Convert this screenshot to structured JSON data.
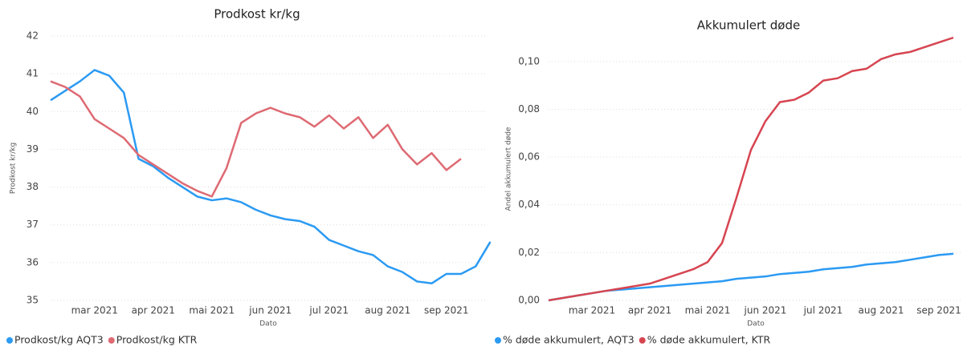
{
  "chart_data": [
    {
      "type": "line",
      "title": "Prodkost kr/kg",
      "x_label": "Dato",
      "y_label": "Prodkost kr/kg",
      "categories": [
        null,
        null,
        null,
        "mar 2021",
        null,
        null,
        null,
        "apr 2021",
        null,
        null,
        null,
        "mai 2021",
        null,
        null,
        null,
        "jun 2021",
        null,
        null,
        null,
        "jul 2021",
        null,
        null,
        null,
        "aug 2021",
        null,
        null,
        null,
        "sep 2021",
        null,
        null,
        null
      ],
      "series": [
        {
          "name": "Prodkost/kg AQT3",
          "color": "#2b9af3",
          "values": [
            40.3,
            40.55,
            40.8,
            41.1,
            40.95,
            40.5,
            38.75,
            38.55,
            38.25,
            38.0,
            37.75,
            37.65,
            37.7,
            37.6,
            37.4,
            37.25,
            37.15,
            37.1,
            36.95,
            36.6,
            36.45,
            36.3,
            36.2,
            35.9,
            35.75,
            35.5,
            35.45,
            35.7,
            35.7,
            35.9,
            36.55
          ]
        },
        {
          "name": "Prodkost/kg KTR",
          "color": "#de6a73",
          "values": [
            40.8,
            40.65,
            40.4,
            39.8,
            39.55,
            39.3,
            38.85,
            38.6,
            38.35,
            38.1,
            37.9,
            37.75,
            38.5,
            39.7,
            39.95,
            40.1,
            39.95,
            39.85,
            39.6,
            39.9,
            39.55,
            39.85,
            39.3,
            39.65,
            39.0,
            38.6,
            38.9,
            38.45,
            38.75,
            null,
            null
          ]
        }
      ],
      "ylim": [
        35,
        42
      ],
      "yticks": [
        35,
        36,
        37,
        38,
        39,
        40,
        41,
        42
      ],
      "grid": true,
      "legend": "bottom-left"
    },
    {
      "type": "line",
      "title": "Akkumulert døde",
      "x_label": "Dato",
      "y_label": "Andel akkumulert døde",
      "categories": [
        null,
        null,
        null,
        "mar 2021",
        null,
        null,
        null,
        "apr 2021",
        null,
        null,
        null,
        "mai 2021",
        null,
        null,
        null,
        "jun 2021",
        null,
        null,
        null,
        "jul 2021",
        null,
        null,
        null,
        "aug 2021",
        null,
        null,
        null,
        "sep 2021",
        null
      ],
      "series": [
        {
          "name": "% døde akkumulert, AQT3",
          "color": "#2b9af3",
          "values": [
            0,
            0.001,
            0.002,
            0.003,
            0.004,
            0.0045,
            0.005,
            0.0055,
            0.006,
            0.0065,
            0.007,
            0.0075,
            0.008,
            0.009,
            0.0095,
            0.01,
            0.011,
            0.0115,
            0.012,
            0.013,
            0.0135,
            0.014,
            0.015,
            0.0155,
            0.016,
            0.017,
            0.018,
            0.019,
            0.0195
          ]
        },
        {
          "name": "% døde akkumulert, KTR",
          "color": "#d64550",
          "values": [
            0,
            0.001,
            0.002,
            0.003,
            0.004,
            0.005,
            0.006,
            0.007,
            0.009,
            0.011,
            0.013,
            0.016,
            0.024,
            0.043,
            0.063,
            0.075,
            0.083,
            0.084,
            0.087,
            0.092,
            0.093,
            0.096,
            0.097,
            0.101,
            0.103,
            0.104,
            0.106,
            0.108,
            0.11
          ]
        }
      ],
      "ylim": [
        0,
        0.11
      ],
      "yticks": [
        {
          "value": 0,
          "label": "0,00"
        },
        {
          "value": 0.02,
          "label": "0,02"
        },
        {
          "value": 0.04,
          "label": "0,04"
        },
        {
          "value": 0.06,
          "label": "0,06"
        },
        {
          "value": 0.08,
          "label": "0,08"
        },
        {
          "value": 0.1,
          "label": "0,10"
        }
      ],
      "grid": true,
      "legend": "bottom-left"
    }
  ]
}
